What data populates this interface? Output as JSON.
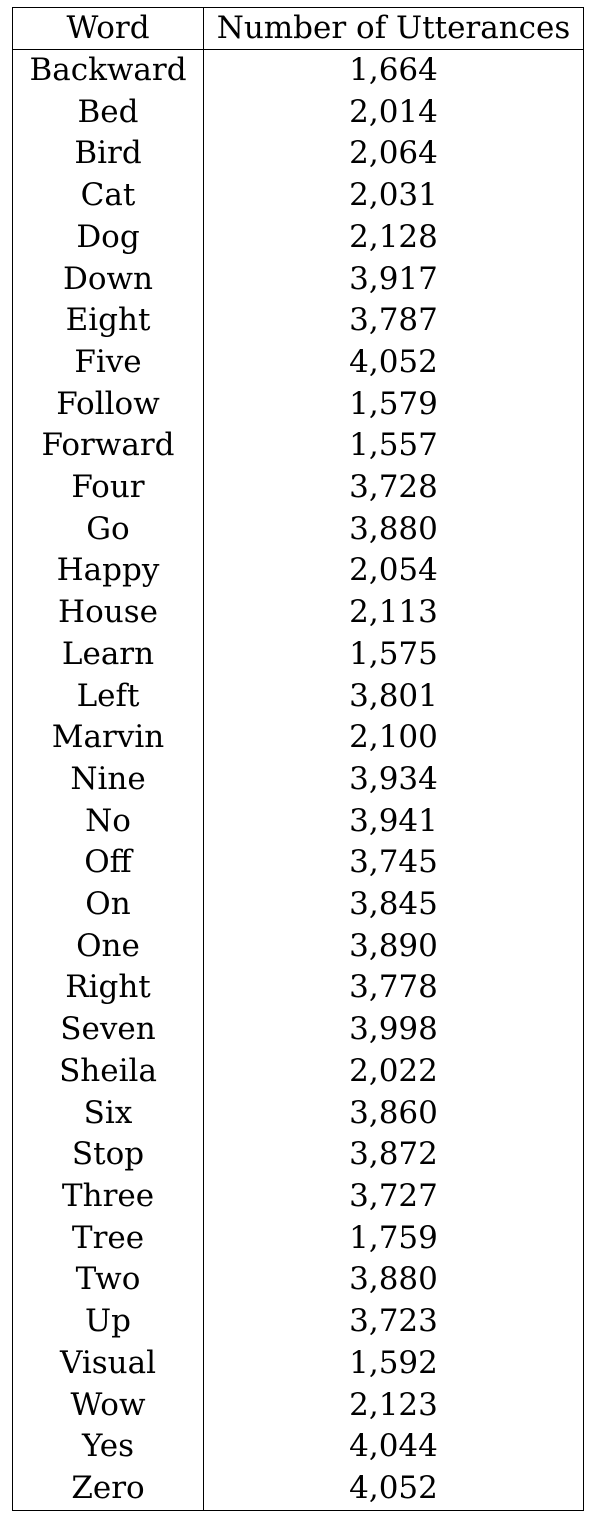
{
  "table": {
    "headers": {
      "word": "Word",
      "utterances": "Number of Utterances"
    },
    "rows": [
      {
        "word": "Backward",
        "count": "1,664"
      },
      {
        "word": "Bed",
        "count": "2,014"
      },
      {
        "word": "Bird",
        "count": "2,064"
      },
      {
        "word": "Cat",
        "count": "2,031"
      },
      {
        "word": "Dog",
        "count": "2,128"
      },
      {
        "word": "Down",
        "count": "3,917"
      },
      {
        "word": "Eight",
        "count": "3,787"
      },
      {
        "word": "Five",
        "count": "4,052"
      },
      {
        "word": "Follow",
        "count": "1,579"
      },
      {
        "word": "Forward",
        "count": "1,557"
      },
      {
        "word": "Four",
        "count": "3,728"
      },
      {
        "word": "Go",
        "count": "3,880"
      },
      {
        "word": "Happy",
        "count": "2,054"
      },
      {
        "word": "House",
        "count": "2,113"
      },
      {
        "word": "Learn",
        "count": "1,575"
      },
      {
        "word": "Left",
        "count": "3,801"
      },
      {
        "word": "Marvin",
        "count": "2,100"
      },
      {
        "word": "Nine",
        "count": "3,934"
      },
      {
        "word": "No",
        "count": "3,941"
      },
      {
        "word": "Off",
        "count": "3,745"
      },
      {
        "word": "On",
        "count": "3,845"
      },
      {
        "word": "One",
        "count": "3,890"
      },
      {
        "word": "Right",
        "count": "3,778"
      },
      {
        "word": "Seven",
        "count": "3,998"
      },
      {
        "word": "Sheila",
        "count": "2,022"
      },
      {
        "word": "Six",
        "count": "3,860"
      },
      {
        "word": "Stop",
        "count": "3,872"
      },
      {
        "word": "Three",
        "count": "3,727"
      },
      {
        "word": "Tree",
        "count": "1,759"
      },
      {
        "word": "Two",
        "count": "3,880"
      },
      {
        "word": "Up",
        "count": "3,723"
      },
      {
        "word": "Visual",
        "count": "1,592"
      },
      {
        "word": "Wow",
        "count": "2,123"
      },
      {
        "word": "Yes",
        "count": "4,044"
      },
      {
        "word": "Zero",
        "count": "4,052"
      }
    ]
  }
}
